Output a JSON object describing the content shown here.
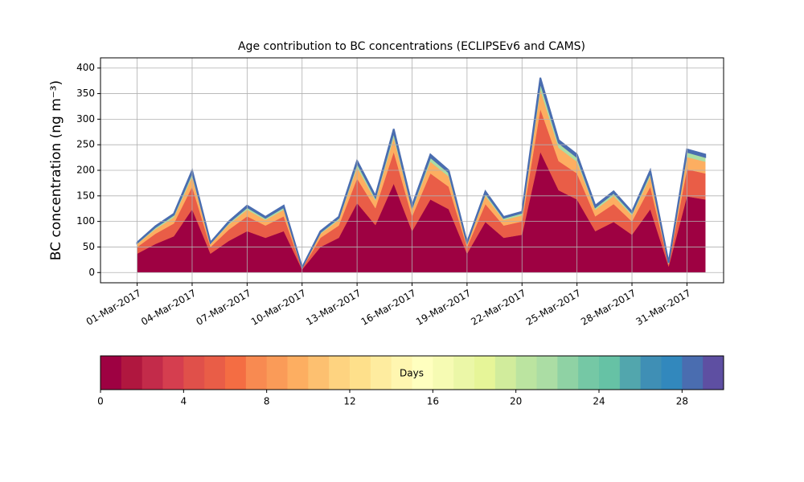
{
  "chart_data": {
    "type": "area",
    "stacked": true,
    "title": "Age contribution to BC concentrations (ECLIPSEv6 and CAMS)",
    "y_label": "BC concentration (ng m⁻³)",
    "x": [
      "2017-03-01",
      "2017-03-02",
      "2017-03-03",
      "2017-03-04",
      "2017-03-05",
      "2017-03-06",
      "2017-03-07",
      "2017-03-08",
      "2017-03-09",
      "2017-03-10",
      "2017-03-11",
      "2017-03-12",
      "2017-03-13",
      "2017-03-14",
      "2017-03-15",
      "2017-03-16",
      "2017-03-17",
      "2017-03-18",
      "2017-03-19",
      "2017-03-20",
      "2017-03-21",
      "2017-03-22",
      "2017-03-23",
      "2017-03-24",
      "2017-03-25",
      "2017-03-26",
      "2017-03-27",
      "2017-03-28",
      "2017-03-29",
      "2017-03-30",
      "2017-03-31",
      "2017-04-01"
    ],
    "series": [
      {
        "color": "#9e0142",
        "values": [
          37,
          56,
          71,
          124,
          37,
          62,
          81,
          68,
          81,
          6,
          50,
          68,
          136,
          93,
          174,
          81,
          143,
          124,
          37,
          99,
          68,
          74,
          236,
          161,
          143,
          81,
          99,
          74,
          124,
          12,
          149,
          143
        ]
      },
      {
        "color": "#e95d47",
        "values": [
          13,
          20,
          25,
          44,
          13,
          22,
          29,
          24,
          29,
          2,
          18,
          24,
          48,
          33,
          62,
          29,
          51,
          44,
          13,
          35,
          24,
          26,
          84,
          57,
          51,
          29,
          35,
          26,
          44,
          4,
          53,
          51
        ]
      },
      {
        "color": "#fdae61",
        "values": [
          6,
          9,
          12,
          20,
          6,
          10,
          13,
          11,
          13,
          1,
          8,
          11,
          22,
          15,
          28,
          13,
          23,
          20,
          6,
          16,
          11,
          12,
          38,
          26,
          23,
          13,
          16,
          12,
          20,
          2,
          24,
          23
        ]
      },
      {
        "color": "#abdda4",
        "values": [
          2,
          4,
          5,
          8,
          2,
          4,
          5,
          4,
          5,
          1,
          3,
          4,
          9,
          6,
          11,
          5,
          9,
          8,
          2,
          6,
          4,
          5,
          15,
          10,
          9,
          5,
          6,
          5,
          8,
          1,
          10,
          9
        ]
      },
      {
        "color": "#4a6db0",
        "values": [
          1,
          2,
          2,
          4,
          1,
          2,
          3,
          2,
          3,
          0,
          2,
          2,
          4,
          3,
          6,
          3,
          5,
          4,
          1,
          3,
          2,
          2,
          8,
          5,
          5,
          3,
          3,
          2,
          4,
          1,
          5,
          5
        ]
      }
    ],
    "xlim": [
      "2017-02-27",
      "2017-04-02"
    ],
    "xticks": [
      {
        "value": "2017-03-01",
        "label": "01-Mar-2017"
      },
      {
        "value": "2017-03-04",
        "label": "04-Mar-2017"
      },
      {
        "value": "2017-03-07",
        "label": "07-Mar-2017"
      },
      {
        "value": "2017-03-10",
        "label": "10-Mar-2017"
      },
      {
        "value": "2017-03-13",
        "label": "13-Mar-2017"
      },
      {
        "value": "2017-03-16",
        "label": "16-Mar-2017"
      },
      {
        "value": "2017-03-19",
        "label": "19-Mar-2017"
      },
      {
        "value": "2017-03-22",
        "label": "22-Mar-2017"
      },
      {
        "value": "2017-03-25",
        "label": "25-Mar-2017"
      },
      {
        "value": "2017-03-28",
        "label": "28-Mar-2017"
      },
      {
        "value": "2017-03-31",
        "label": "31-Mar-2017"
      }
    ],
    "ylim": [
      -20,
      420
    ],
    "yticks": [
      0,
      50,
      100,
      150,
      200,
      250,
      300,
      350,
      400
    ],
    "grid": true,
    "colorbar": {
      "label": "Days",
      "lim": [
        0,
        30
      ],
      "ticks": [
        0,
        4,
        8,
        12,
        16,
        20,
        24,
        28
      ],
      "colors": [
        "#9e0142",
        "#b0173f",
        "#c32b4a",
        "#d53e4f",
        "#e0504a",
        "#e95d47",
        "#f46d43",
        "#f88a51",
        "#fa9b58",
        "#fdae61",
        "#fdc070",
        "#fed380",
        "#fee08b",
        "#feec9f",
        "#fff6b0",
        "#ffffbf",
        "#f6fbb3",
        "#ebf7a7",
        "#e6f598",
        "#d1ec9c",
        "#bbe4a0",
        "#abdda4",
        "#8fd2a4",
        "#75c8a5",
        "#66c2a5",
        "#52a6ad",
        "#3f8fb5",
        "#3288bd",
        "#4a6db0",
        "#5e4fa2"
      ]
    }
  }
}
